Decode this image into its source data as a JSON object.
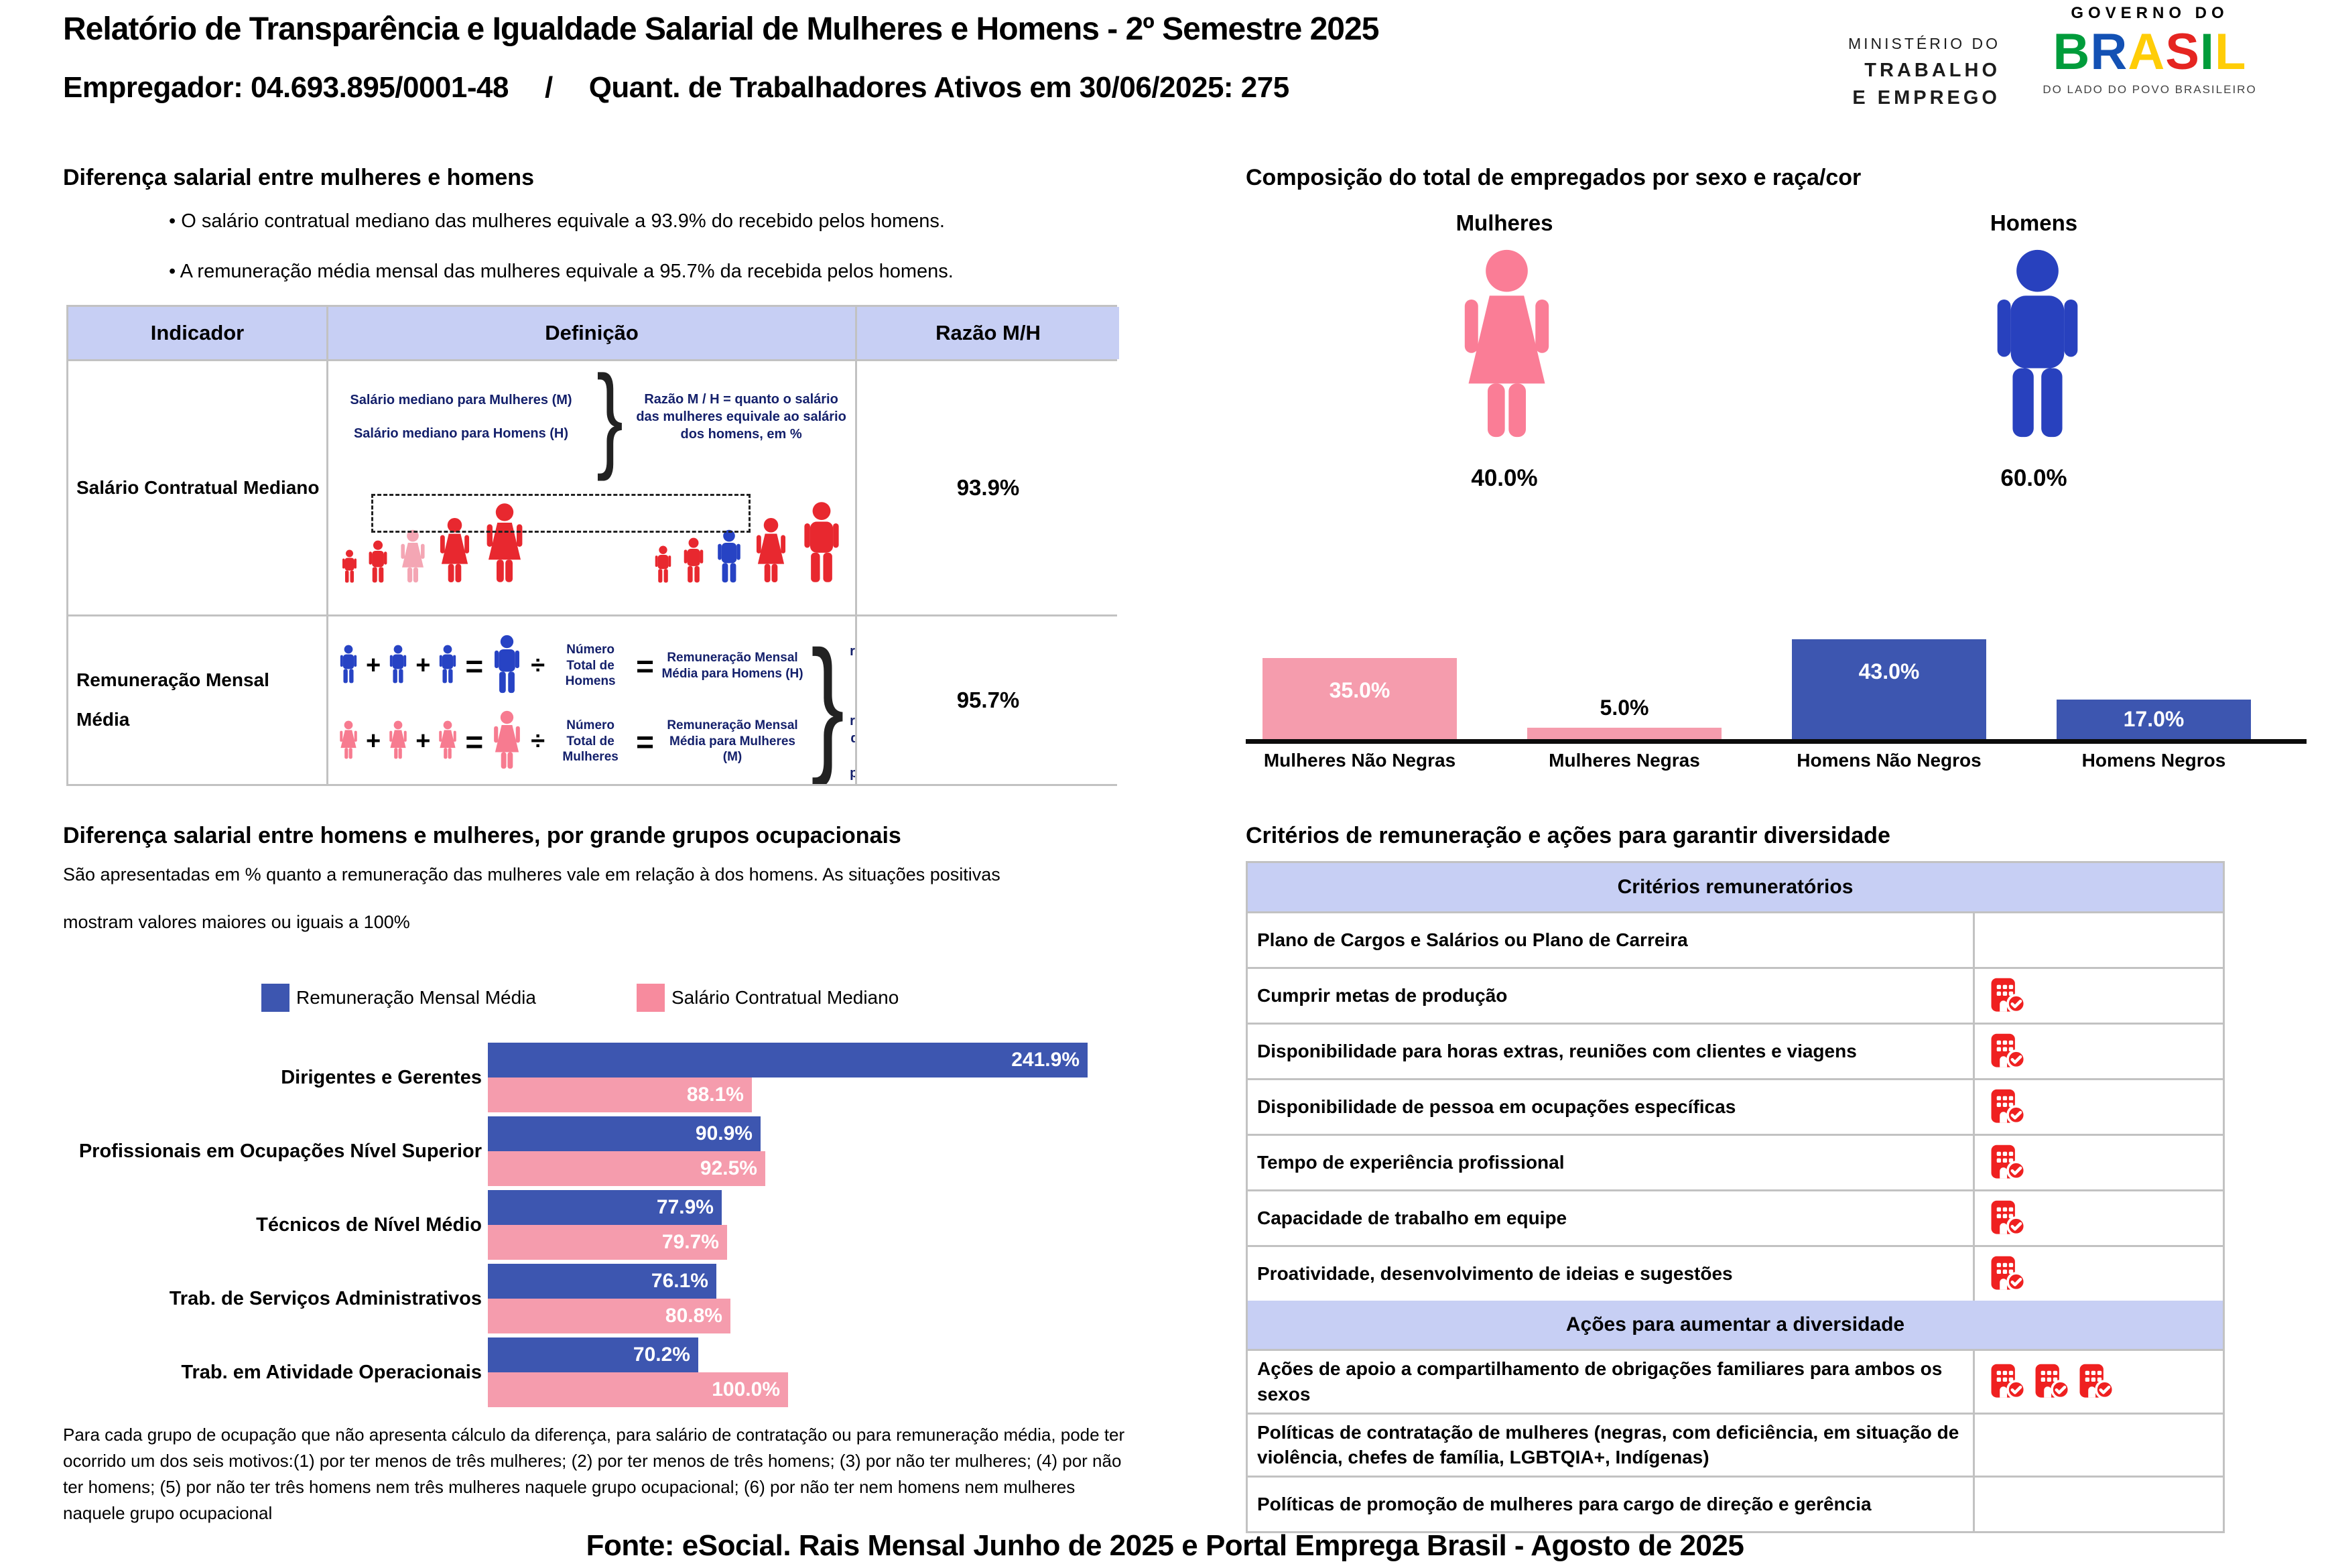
{
  "header": {
    "title": "Relatório de Transparência e Igualdade Salarial de Mulheres e Homens - 2º Semestre 2025",
    "employer": "Empregador: 04.693.895/0001-48",
    "separator": "/",
    "workers": "Quant. de Trabalhadores Ativos em 30/06/2025: 275",
    "ministry": [
      "MINISTÉRIO DO",
      "TRABALHO",
      "E EMPREGO"
    ],
    "gov": {
      "top": "GOVERNO DO",
      "letters": [
        "B",
        "R",
        "A",
        "S",
        "I",
        "L"
      ],
      "letter_colors": [
        "#009C3B",
        "#1351B4",
        "#FFCD07",
        "#E52521",
        "#009C3B",
        "#FFCD07"
      ],
      "tagline": "DO LADO DO POVO BRASILEIRO"
    }
  },
  "pay_gap": {
    "heading": "Diferença salarial entre mulheres e homens",
    "bullets": [
      "O salário contratual mediano das mulheres equivale a 93.9% do recebido pelos homens.",
      "A remuneração média mensal das mulheres equivale a 95.7% da recebida pelos homens."
    ]
  },
  "indicator_table": {
    "columns": [
      "Indicador",
      "Definição",
      "Razão M/H"
    ],
    "brace": "}",
    "rows": [
      {
        "indicator": "Salário Contratual Mediano",
        "ratio": "93.9%",
        "def_lines": [
          "Salário mediano para Mulheres (M)",
          "Salário mediano para Homens (H)"
        ],
        "def_note": "Razão M / H = quanto o salário das mulheres equivale ao salário dos homens, em %"
      },
      {
        "indicator": "Remuneração Mensal Média",
        "ratio": "95.7%",
        "eq": {
          "plus": "+",
          "equals": "=",
          "divide": "÷",
          "men_divisor": "Número Total de Homens",
          "men_result": "Remuneração Mensal Média para Homens (H)",
          "women_divisor": "Número Total de Mulheres",
          "women_result": "Remuneração Mensal Média para Mulheres (M)"
        },
        "def_note": "Razão M / H = quanto a remuneração das mulheres equivale à remuneração dos homens, em porcentagem (%)"
      }
    ]
  },
  "composition": {
    "heading": "Composição do total de empregados por sexo e raça/cor",
    "groups": [
      {
        "label": "Mulheres",
        "pct": "40.0%"
      },
      {
        "label": "Homens",
        "pct": "60.0%"
      }
    ]
  },
  "occupations": {
    "heading": "Diferença salarial entre homens e mulheres, por grande grupos ocupacionais",
    "description": [
      "São apresentadas em % quanto a remuneração das mulheres vale em relação à dos homens. As situações positivas",
      "mostram valores maiores ou iguais a 100%"
    ],
    "footnote": "Para cada grupo de ocupação que não apresenta cálculo da diferença, para salário de contratação ou para remuneração média, pode ter ocorrido um dos seis motivos:(1) por ter menos de três mulheres; (2) por ter menos de três homens; (3) por não ter mulheres; (4) por não ter homens; (5) por não ter três homens nem três mulheres naquele grupo ocupacional; (6) por não ter nem homens nem mulheres naquele grupo ocupacional"
  },
  "criteria": {
    "heading": "Critérios de remuneração e ações para garantir diversidade",
    "groups": [
      {
        "title": "Critérios remuneratórios",
        "rows": [
          {
            "label": "Plano de Cargos e Salários ou Plano de Carreira",
            "icons": 0
          },
          {
            "label": "Cumprir metas de produção",
            "icons": 1
          },
          {
            "label": "Disponibilidade para horas extras, reuniões com clientes e viagens",
            "icons": 1
          },
          {
            "label": "Disponibilidade de pessoa em ocupações específicas",
            "icons": 1
          },
          {
            "label": "Tempo de experiência profissional",
            "icons": 1
          },
          {
            "label": "Capacidade de trabalho em equipe",
            "icons": 1
          },
          {
            "label": "Proatividade, desenvolvimento de ideias e sugestões",
            "icons": 1
          }
        ]
      },
      {
        "title": "Ações para aumentar a diversidade",
        "rows": [
          {
            "label": "Ações de apoio a compartilhamento de obrigações familiares para ambos os sexos",
            "icons": 3
          },
          {
            "label": "Políticas de contratação de mulheres (negras, com deficiência, em situação de violência, chefes de família, LGBTQIA+, Indígenas)",
            "icons": 0
          },
          {
            "label": "Políticas de promoção de mulheres para cargo de direção e gerência",
            "icons": 0
          }
        ]
      }
    ]
  },
  "footer": {
    "text": "Fonte: eSocial. Rais Mensal Junho de 2025 e Portal Emprega Brasil - Agosto de 2025"
  },
  "palette": {
    "periwinkle": "#C7CFF4",
    "blue": "#3D56B0",
    "pink": "#F59CAD",
    "legend_pink": "#F78B9E",
    "female_icon_pink": "#FA7D96",
    "male_icon_blue": "#2841BE",
    "red": "#E8282F",
    "light_pink": "#F4A6B4",
    "royal_blue": "#2743C4",
    "women_pink": "#F77B90",
    "icon_red": "#EF2020"
  },
  "pictograms": {
    "salary_row": {
      "left": [
        {
          "k": "man",
          "c": "#E8282F",
          "h": 50
        },
        {
          "k": "man",
          "c": "#E8282F",
          "h": 64
        },
        {
          "k": "woman",
          "c": "#F4A6B4",
          "h": 80
        },
        {
          "k": "woman",
          "c": "#E8282F",
          "h": 98
        },
        {
          "k": "woman",
          "c": "#E8282F",
          "h": 120
        }
      ],
      "right": [
        {
          "k": "man",
          "c": "#E8282F",
          "h": 56
        },
        {
          "k": "man",
          "c": "#E8282F",
          "h": 68
        },
        {
          "k": "man",
          "c": "#2743C4",
          "h": 80
        },
        {
          "k": "woman",
          "c": "#E8282F",
          "h": 98
        },
        {
          "k": "man",
          "c": "#E8282F",
          "h": 122
        }
      ]
    }
  },
  "chart_data": [
    {
      "type": "bar",
      "title": "Composição do total de empregados por sexo e raça/cor",
      "categories": [
        "Mulheres Não Negras",
        "Mulheres Negras",
        "Homens Não Negros",
        "Homens Negros"
      ],
      "values": [
        35.0,
        5.0,
        43.0,
        17.0
      ],
      "value_labels": [
        "35.0%",
        "5.0%",
        "43.0%",
        "17.0%"
      ],
      "colors": [
        "#F59CAD",
        "#F59CAD",
        "#3D56B0",
        "#3D56B0"
      ],
      "unit": "%",
      "ylim": [
        0,
        47
      ],
      "grid": false,
      "sex_totals": {
        "Mulheres": 40.0,
        "Homens": 60.0
      }
    },
    {
      "type": "bar",
      "orientation": "horizontal",
      "title": "Diferença salarial entre homens e mulheres, por grande grupos ocupacionais",
      "categories": [
        "Dirigentes e Gerentes",
        "Profissionais em Ocupações Nível Superior",
        "Técnicos de Nível Médio",
        "Trab. de Serviços Administrativos",
        "Trab. em Atividade Operacionais"
      ],
      "series": [
        {
          "name": "Remuneração Mensal Média",
          "color": "#3D56B0",
          "values": [
            241.9,
            90.9,
            77.9,
            76.1,
            70.2
          ],
          "value_labels": [
            "241.9%",
            "90.9%",
            "77.9%",
            "76.1%",
            "70.2%"
          ]
        },
        {
          "name": "Salário Contratual Mediano",
          "color": "#F59CAD",
          "values": [
            88.1,
            92.5,
            79.7,
            80.8,
            100.0
          ],
          "value_labels": [
            "88.1%",
            "92.5%",
            "79.7%",
            "80.8%",
            "100.0%"
          ]
        }
      ],
      "unit": "%",
      "xlim": [
        0,
        200
      ],
      "grid": false,
      "legend_position": "top"
    }
  ]
}
